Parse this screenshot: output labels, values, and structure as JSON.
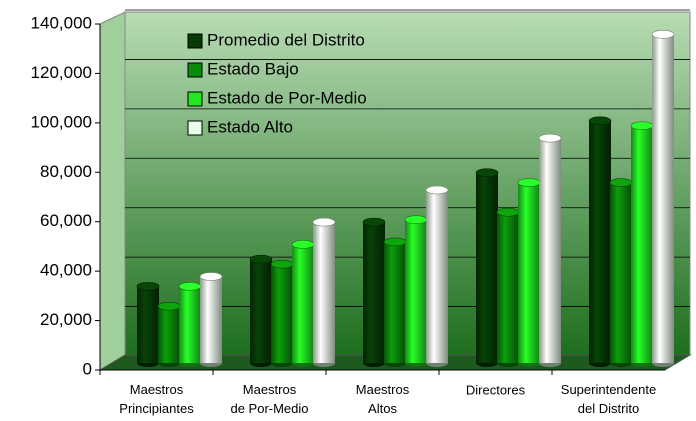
{
  "chart_data": {
    "type": "bar",
    "categories": [
      "Maestros Principiantes",
      "Maestros de Por-Medio",
      "Maestros Altos",
      "Directores",
      "Superintendente del Distrito"
    ],
    "series": [
      {
        "name": "Promedio del Distrito",
        "color": "#063a06",
        "values": [
          31000,
          42000,
          57000,
          77000,
          98000
        ]
      },
      {
        "name": "Estado Bajo",
        "color": "#0a8a0a",
        "values": [
          23000,
          40000,
          49000,
          61000,
          73000
        ]
      },
      {
        "name": "Estado de Por-Medio",
        "color": "#22e622",
        "values": [
          31000,
          48000,
          58000,
          73000,
          96000
        ]
      },
      {
        "name": "Estado Alto",
        "color": "#e6ffe6",
        "values": [
          35000,
          57000,
          70000,
          91000,
          133000
        ]
      }
    ],
    "ylim": [
      0,
      140000
    ],
    "yticks": [
      0,
      {
        "value": 20000,
        "label": "20,000"
      },
      {
        "value": 40000,
        "label": "40,000"
      },
      {
        "value": 60000,
        "label": "60,000"
      },
      {
        "value": 80000,
        "label": "80,000"
      },
      {
        "value": 100000,
        "label": "100,000"
      },
      {
        "value": 120000,
        "label": "120,000"
      },
      {
        "value": 140000,
        "label": "140,000"
      }
    ],
    "grid": true,
    "legend": "upper left"
  }
}
